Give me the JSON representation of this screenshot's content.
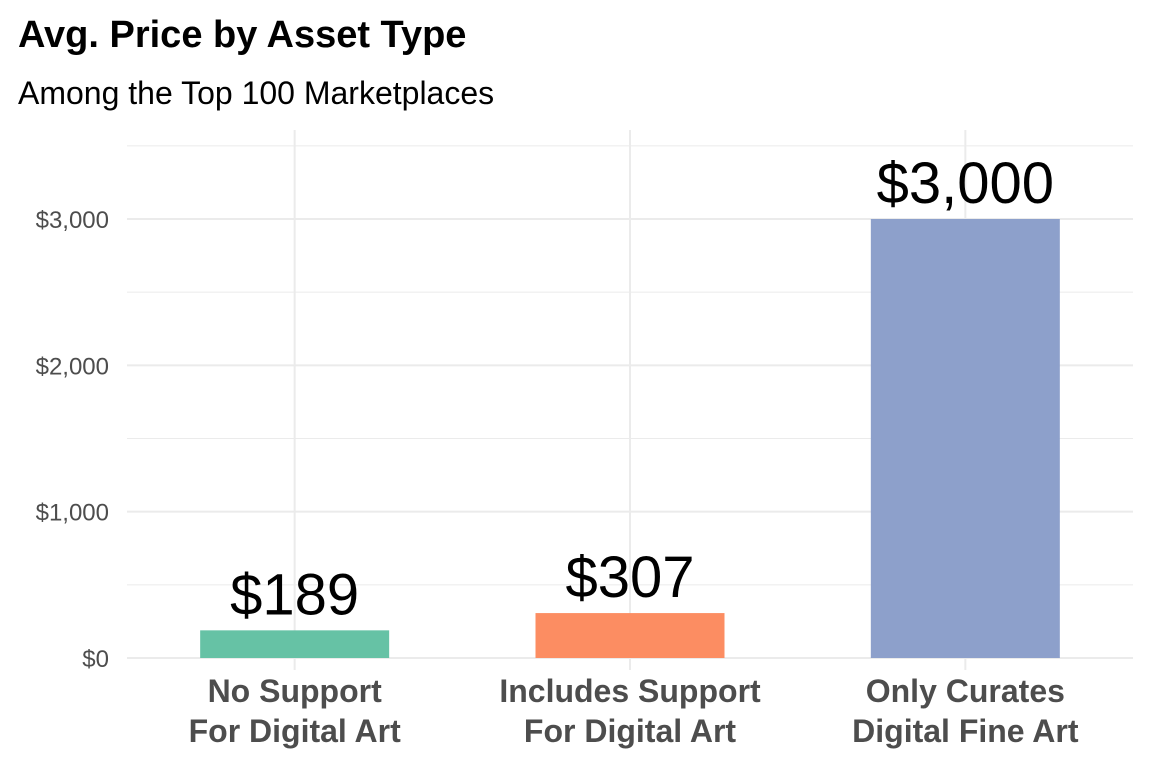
{
  "title": "Avg. Price by Asset Type",
  "subtitle": "Among the Top 100 Marketplaces",
  "chart_data": {
    "type": "bar",
    "title": "Avg. Price by Asset Type",
    "subtitle": "Among the Top 100 Marketplaces",
    "xlabel": "",
    "ylabel": "",
    "categories": [
      [
        "No Support",
        "For Digital Art"
      ],
      [
        "Includes Support",
        "For Digital Art"
      ],
      [
        "Only Curates",
        "Digital Fine Art"
      ]
    ],
    "values": [
      189,
      307,
      3000
    ],
    "data_labels": [
      "$189",
      "$307",
      "$3,000"
    ],
    "colors": [
      "#66c2a5",
      "#fc8d62",
      "#8da0cb"
    ],
    "yticks": [
      0,
      1000,
      2000,
      3000
    ],
    "ytick_labels": [
      "$0",
      "$1,000",
      "$2,000",
      "$3,000"
    ],
    "ylim": [
      0,
      3500
    ],
    "grid": true,
    "legend": "none"
  }
}
